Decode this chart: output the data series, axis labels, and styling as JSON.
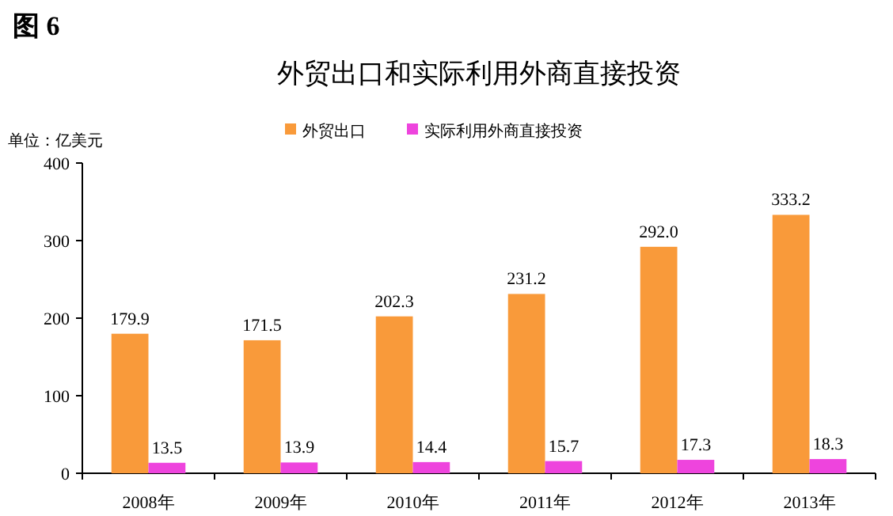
{
  "chart_data": {
    "type": "bar",
    "title": "外贸出口和实际利用外商直接投资",
    "ylabel": "单位：亿美元",
    "annotations": [
      "图 6"
    ],
    "categories": [
      "2008年",
      "2009年",
      "2010年",
      "2011年",
      "2012年",
      "2013年"
    ],
    "series": [
      {
        "name": "外贸出口",
        "color": "#f99a3a",
        "values": [
          179.9,
          171.5,
          202.3,
          231.2,
          292.0,
          333.2
        ],
        "value_labels": [
          "179.9",
          "171.5",
          "202.3",
          "231.2",
          "292.0",
          "333.2"
        ]
      },
      {
        "name": "实际利用外商直接投资",
        "color": "#ee44dd",
        "values": [
          13.5,
          13.9,
          14.4,
          15.7,
          17.3,
          18.3
        ],
        "value_labels": [
          "13.5",
          "13.9",
          "14.4",
          "15.7",
          "17.3",
          "18.3"
        ]
      }
    ],
    "ylim": [
      0,
      400
    ],
    "yticks": [
      0,
      100,
      200,
      300,
      400
    ],
    "legend": "top"
  }
}
